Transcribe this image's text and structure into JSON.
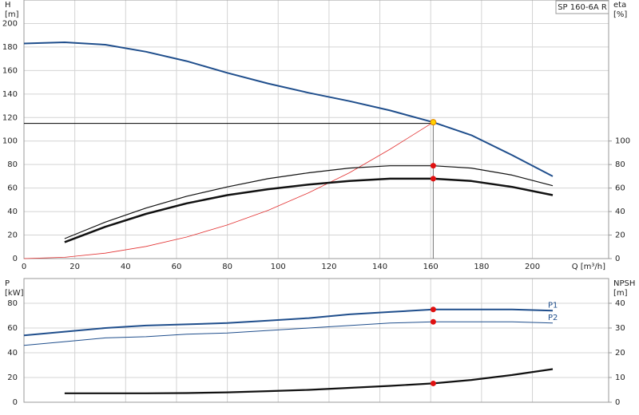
{
  "chart_data": [
    {
      "type": "line",
      "title": "SP 160-6A R",
      "ylabel": "H",
      "yunit": "[m]",
      "y2label": "eta",
      "y2unit": "[%]",
      "xlabel": "Q [m³/h]",
      "xlim": [
        0,
        230
      ],
      "xticks": [
        0,
        20,
        40,
        60,
        80,
        100,
        120,
        140,
        160,
        180,
        200
      ],
      "ylim": [
        0,
        220
      ],
      "yticks": [
        0,
        20,
        40,
        60,
        80,
        100,
        120,
        140,
        160,
        180,
        200
      ],
      "y2lim": [
        0,
        220
      ],
      "y2ticks": [
        0,
        20,
        40,
        60,
        80,
        100
      ],
      "grid": true,
      "show_xtick_labels": true,
      "duty_point": {
        "x": 161,
        "y": 115
      },
      "series": [
        {
          "color": "#1f4e8c",
          "line_width": 2,
          "marker_color": "#ffd200",
          "x": [
            0,
            16,
            32,
            48,
            64,
            80,
            96,
            112,
            128,
            144,
            161,
            176,
            192,
            208
          ],
          "values": [
            183,
            184,
            182,
            176,
            168,
            158,
            149,
            141,
            134,
            126,
            116,
            105,
            88,
            70
          ]
        },
        {
          "color": "#e23030",
          "line_width": 0.8,
          "x": [
            0,
            16,
            32,
            48,
            64,
            80,
            96,
            112,
            128,
            144,
            161
          ],
          "values": [
            0,
            1.1,
            4.6,
            10.3,
            18.3,
            28.6,
            41,
            56,
            73,
            93,
            116
          ]
        },
        {
          "color": "#111111",
          "line_width": 1.2,
          "axis": "y2",
          "marker_color": "#e01010",
          "x": [
            16,
            32,
            48,
            64,
            80,
            96,
            112,
            128,
            144,
            161,
            176,
            192,
            208
          ],
          "values": [
            17,
            31,
            43,
            53,
            61,
            68,
            73,
            77,
            79,
            79,
            77,
            71,
            62
          ]
        },
        {
          "color": "#111111",
          "line_width": 2.5,
          "axis": "y2",
          "marker_color": "#e01010",
          "x": [
            16,
            32,
            48,
            64,
            80,
            96,
            112,
            128,
            144,
            161,
            176,
            192,
            208
          ],
          "values": [
            14,
            27,
            38,
            47,
            54,
            59,
            63,
            66,
            68,
            68,
            66,
            61,
            54
          ]
        }
      ]
    },
    {
      "type": "line",
      "ylabel": "P",
      "yunit": "[kW]",
      "y2label": "NPSH",
      "y2unit": "[m]",
      "xlim": [
        0,
        230
      ],
      "xticks": [
        0,
        20,
        40,
        60,
        80,
        100,
        120,
        140,
        160,
        180,
        200
      ],
      "ylim": [
        0,
        100
      ],
      "yticks": [
        0,
        20,
        40,
        60,
        80
      ],
      "y2lim": [
        0,
        50
      ],
      "y2ticks": [
        0,
        10,
        20,
        30,
        40
      ],
      "grid": true,
      "show_xtick_labels": false,
      "duty_point": {
        "x": 161
      },
      "series": [
        {
          "name": "P1",
          "color": "#1f4e8c",
          "line_width": 2,
          "marker_color": "#e01010",
          "x": [
            0,
            16,
            32,
            48,
            64,
            80,
            96,
            112,
            128,
            144,
            161,
            176,
            192,
            208
          ],
          "values": [
            54,
            57,
            60,
            62,
            63,
            64,
            66,
            68,
            71,
            73,
            75,
            75,
            75,
            74
          ]
        },
        {
          "name": "P2",
          "color": "#1f4e8c",
          "line_width": 1,
          "marker_color": "#e01010",
          "x": [
            0,
            16,
            32,
            48,
            64,
            80,
            96,
            112,
            128,
            144,
            161,
            176,
            192,
            208
          ],
          "values": [
            46,
            49,
            52,
            53,
            55,
            56,
            58,
            60,
            62,
            64,
            65,
            65,
            65,
            64
          ]
        },
        {
          "color": "#111111",
          "line_width": 2.2,
          "axis": "y2",
          "marker_color": "#e01010",
          "x": [
            16,
            32,
            48,
            64,
            80,
            96,
            112,
            128,
            144,
            161,
            176,
            192,
            208
          ],
          "values": [
            3.6,
            3.6,
            3.6,
            3.7,
            4,
            4.5,
            5,
            5.8,
            6.6,
            7.6,
            9,
            11,
            13.4
          ]
        }
      ]
    }
  ]
}
